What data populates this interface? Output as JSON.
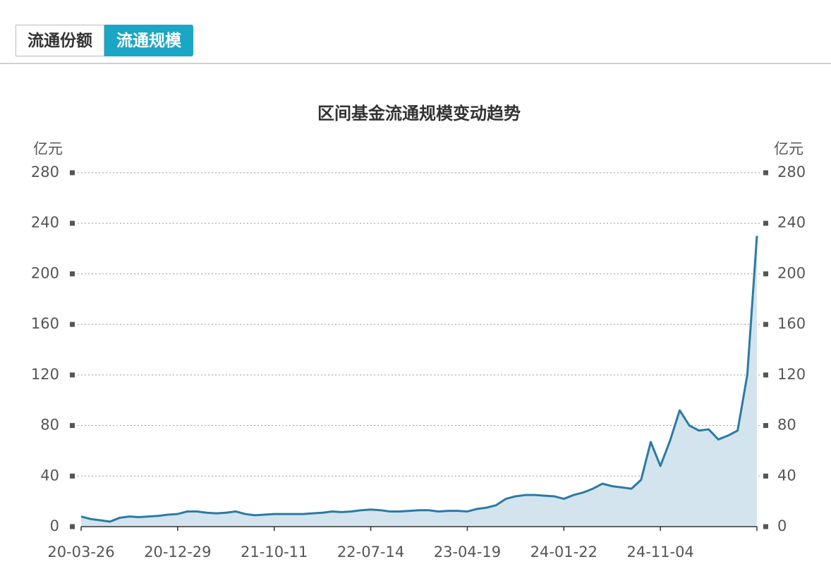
{
  "tabs": [
    "流通份额",
    "流通规模"
  ],
  "chart_data": {
    "type": "area",
    "title": "区间基金流通规模变动趋势",
    "y_label": "亿元",
    "y2_label": "亿元",
    "categories": [
      "20-03-26",
      null,
      null,
      null,
      null,
      null,
      null,
      null,
      null,
      null,
      "20-12-29",
      null,
      null,
      null,
      null,
      null,
      null,
      null,
      null,
      null,
      "21-10-11",
      null,
      null,
      null,
      null,
      null,
      null,
      null,
      null,
      null,
      "22-07-14",
      null,
      null,
      null,
      null,
      null,
      null,
      null,
      null,
      null,
      "23-04-19",
      null,
      null,
      null,
      null,
      null,
      null,
      null,
      null,
      null,
      "24-01-22",
      null,
      null,
      null,
      null,
      null,
      null,
      null,
      null,
      null,
      "24-11-04",
      null,
      null,
      null,
      null,
      null,
      null,
      null,
      null,
      null,
      null
    ],
    "series": [
      {
        "name": "流通规模",
        "color": "#2a7ba3",
        "fill": "#d4e4ee",
        "values": [
          8,
          6,
          5,
          4,
          7,
          8,
          7.5,
          8,
          8.5,
          9.5,
          10,
          12,
          12,
          11,
          10.5,
          11,
          12,
          10,
          9,
          9.5,
          10,
          10,
          10,
          10,
          10.5,
          11,
          12,
          11.5,
          12,
          13,
          13.5,
          13,
          12,
          12,
          12.5,
          13,
          13,
          12,
          12.5,
          12.5,
          12,
          14,
          15,
          17,
          22,
          24,
          25,
          25,
          24.5,
          24,
          22,
          25,
          27,
          30,
          34,
          32,
          31,
          30,
          37,
          67,
          48,
          68,
          92,
          80,
          76,
          77,
          69,
          72,
          76,
          120,
          230
        ]
      }
    ],
    "ylim": [
      0,
      280
    ],
    "yticks": [
      0,
      40,
      80,
      120,
      160,
      200,
      240,
      280
    ],
    "y2lim": [
      0,
      280
    ],
    "y2ticks": [
      0,
      40,
      80,
      120,
      160,
      200,
      240,
      280
    ],
    "grid": true
  }
}
